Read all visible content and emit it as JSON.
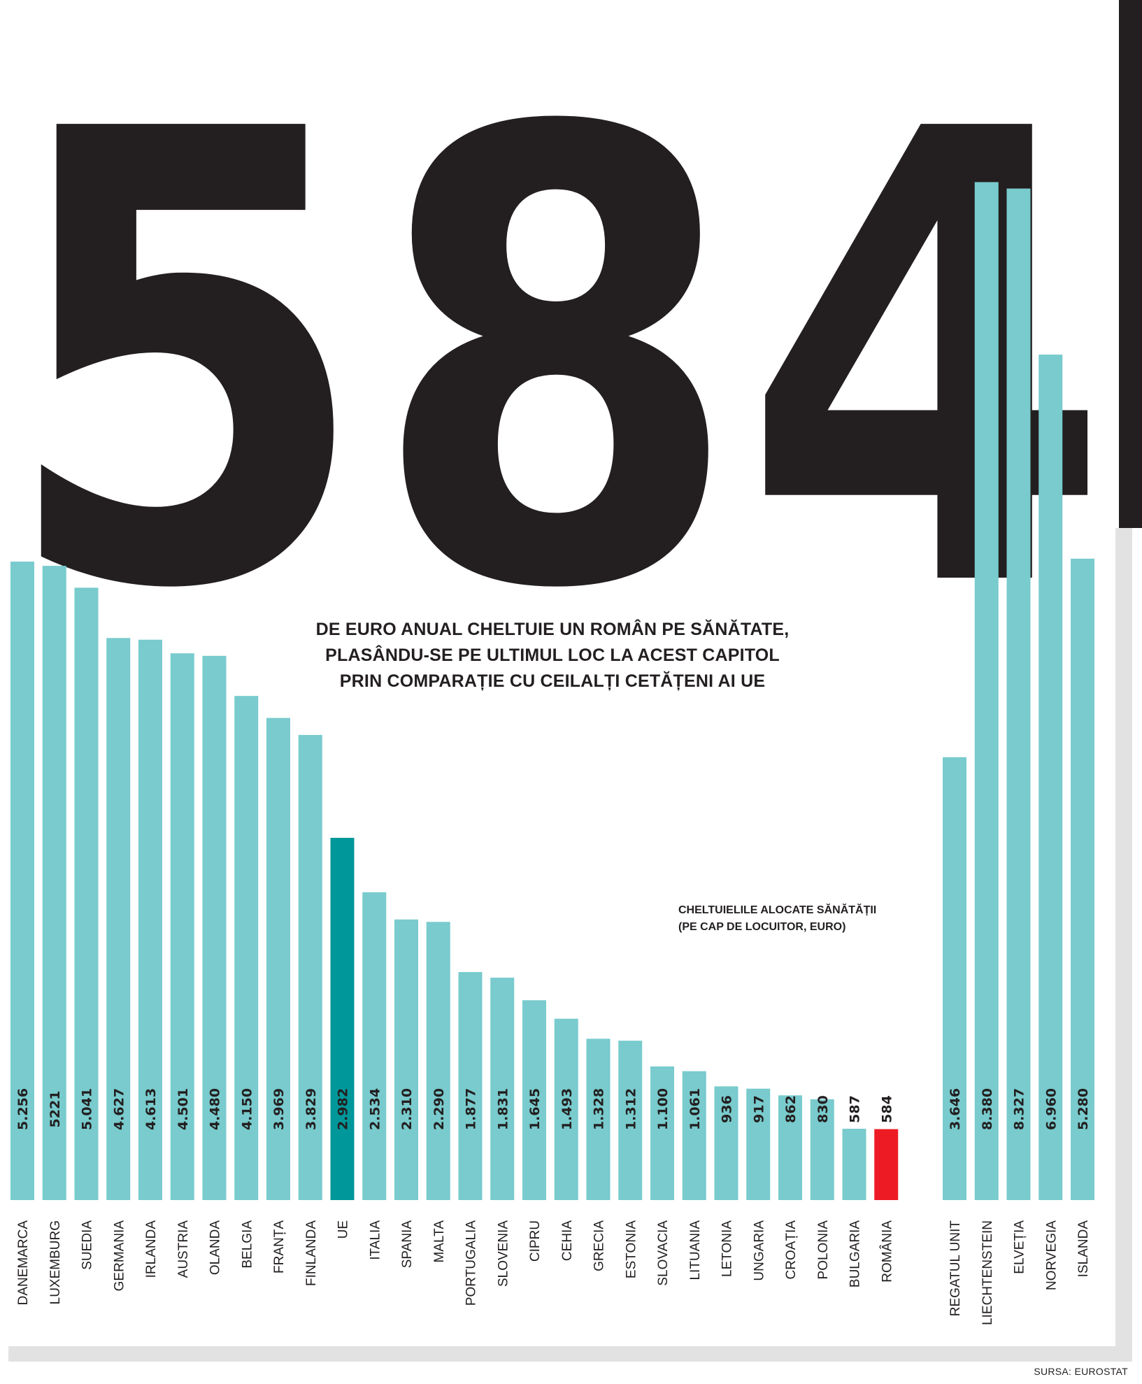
{
  "headline_number": "584",
  "headline_text": "DE EURO ANUAL CHELTUIE UN ROMÂN PE SĂNĂTATE, PLASÂNDU-SE PE ULTIMUL LOC LA ACEST CAPITOL PRIN COMPARAȚIE CU CEILALȚI CETĂȚENI AI UE",
  "legend_line1": "CHELTUIELILE ALOCATE SĂNĂTĂȚII",
  "legend_line2": "(PE CAP DE LOCUITOR, EURO)",
  "source": "SURSA: EUROSTAT",
  "colors": {
    "bar": "#79cbcd",
    "highlight_eu": "#00979a",
    "highlight_ro": "#ed1c24",
    "dark": "#231f20"
  },
  "chart_data": {
    "type": "bar",
    "ylim": [
      0,
      8500
    ],
    "categories": [
      "DANEMARCA",
      "LUXEMBURG",
      "SUEDIA",
      "GERMANIA",
      "IRLANDA",
      "AUSTRIA",
      "OLANDA",
      "BELGIA",
      "FRANȚA",
      "FINLANDA",
      "UE",
      "ITALIA",
      "SPANIA",
      "MALTA",
      "PORTUGALIA",
      "SLOVENIA",
      "CIPRU",
      "CEHIA",
      "GRECIA",
      "ESTONIA",
      "SLOVACIA",
      "LITUANIA",
      "LETONIA",
      "UNGARIA",
      "CROAȚIA",
      "POLONIA",
      "BULGARIA",
      "ROMÂNIA",
      "REGATUL UNIT",
      "LIECHTENSTEIN",
      "ELVEȚIA",
      "NORVEGIA",
      "ISLANDA"
    ],
    "values": [
      5256,
      5221,
      5041,
      4627,
      4613,
      4501,
      4480,
      4150,
      3969,
      3829,
      2982,
      2534,
      2310,
      2290,
      1877,
      1831,
      1645,
      1493,
      1328,
      1312,
      1100,
      1061,
      936,
      917,
      862,
      830,
      587,
      584,
      3646,
      8380,
      8327,
      6960,
      5280
    ],
    "value_labels": [
      "5.256",
      "5221",
      "5.041",
      "4.627",
      "4.613",
      "4.501",
      "4.480",
      "4.150",
      "3.969",
      "3.829",
      "2.982",
      "2.534",
      "2.310",
      "2.290",
      "1.877",
      "1.831",
      "1.645",
      "1.493",
      "1.328",
      "1.312",
      "1.100",
      "1.061",
      "936",
      "917",
      "862",
      "830",
      "587",
      "584",
      "3.646",
      "8.380",
      "8.327",
      "6.960",
      "5.280"
    ],
    "highlights": {
      "UE": "highlight_eu",
      "ROMÂNIA": "highlight_ro"
    }
  }
}
